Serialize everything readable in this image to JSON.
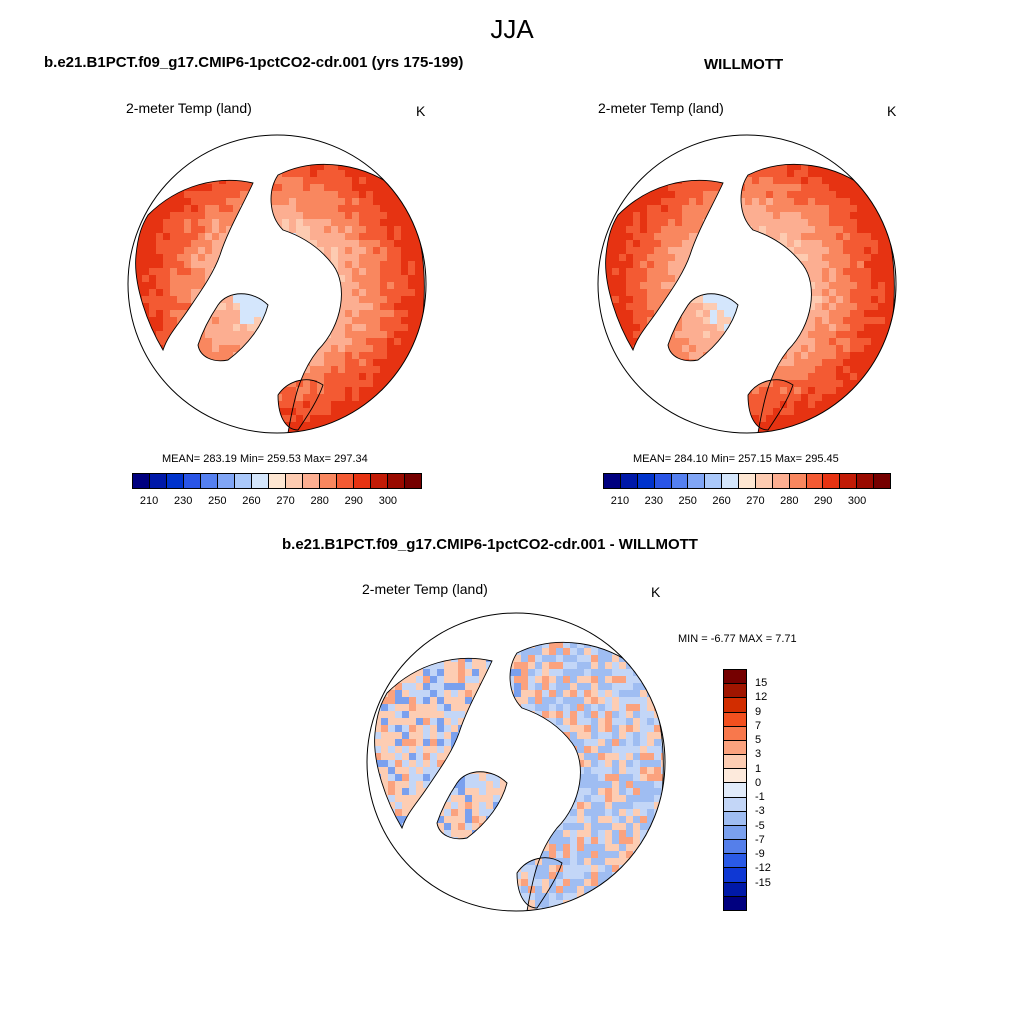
{
  "figure": {
    "title": "JJA"
  },
  "panels": [
    {
      "id": "model",
      "title": "b.e21.B1PCT.f09_g17.CMIP6-1pctCO2-cdr.001 (yrs 175-199)",
      "variable": "2-meter Temp (land)",
      "units": "K",
      "stats": "MEAN= 283.19  Min= 259.53  Max= 297.34"
    },
    {
      "id": "obs",
      "title": "WILLMOTT",
      "variable": "2-meter Temp (land)",
      "units": "K",
      "stats": "MEAN= 284.10  Min= 257.15  Max= 295.45"
    },
    {
      "id": "diff",
      "title": "b.e21.B1PCT.f09_g17.CMIP6-1pctCO2-cdr.001 - WILLMOTT",
      "variable": "2-meter Temp (land)",
      "units": "K",
      "stats": "MIN =  -6.77 MAX =   7.71"
    }
  ],
  "colorbar_abs": {
    "colors": [
      "#00007f",
      "#0019a8",
      "#0033cc",
      "#2a55e6",
      "#5580f0",
      "#80a5f5",
      "#aac8fa",
      "#d4e6fc",
      "#fde6d2",
      "#fdcbb1",
      "#fcae91",
      "#f9875f",
      "#f35a33",
      "#e63312",
      "#c21b06",
      "#990a00",
      "#750000"
    ],
    "tick_labels": [
      "210",
      "230",
      "250",
      "260",
      "270",
      "280",
      "290",
      "300"
    ]
  },
  "colorbar_diff": {
    "colors": [
      "#750000",
      "#a01500",
      "#d22d00",
      "#f2501f",
      "#f8784c",
      "#fba27e",
      "#fdcdb3",
      "#fdeadc",
      "#e1ebfa",
      "#c3d6f7",
      "#9fbdf2",
      "#7aa0ee",
      "#557fea",
      "#2a5ae6",
      "#0f38d4",
      "#0019a8",
      "#00007f"
    ],
    "tick_labels": [
      "15",
      "12",
      "9",
      "7",
      "5",
      "3",
      "1",
      "0",
      "-1",
      "-3",
      "-5",
      "-7",
      "-9",
      "-12",
      "-15"
    ]
  }
}
